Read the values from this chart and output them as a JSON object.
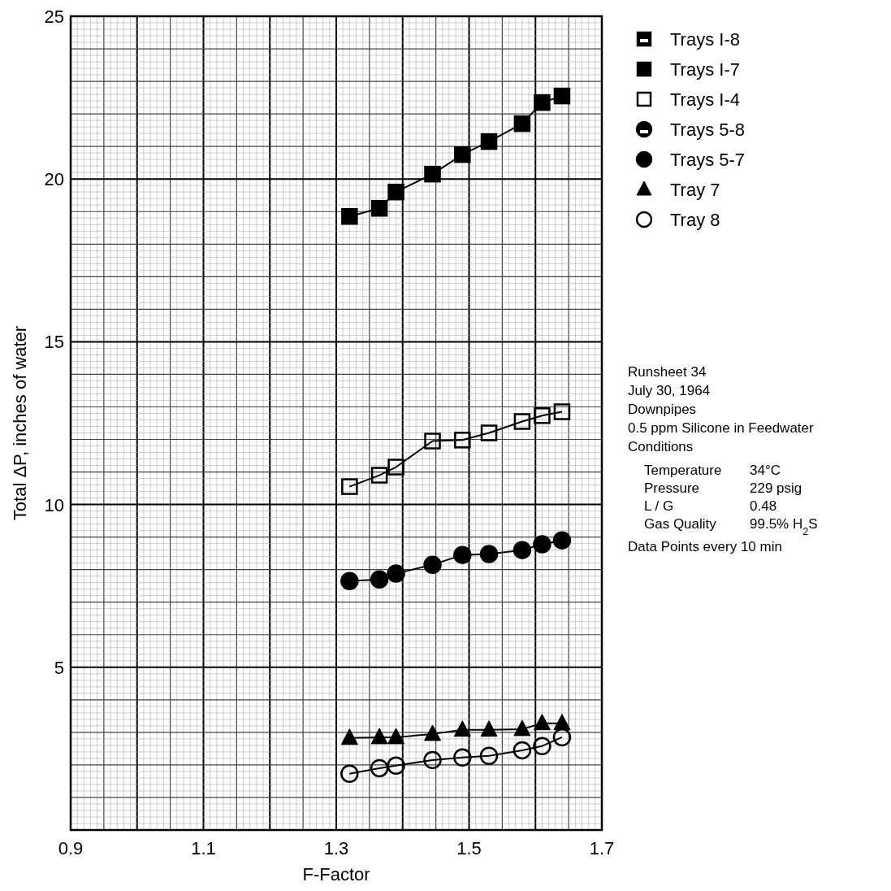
{
  "chart_data": {
    "type": "line",
    "xlabel": "F-Factor",
    "ylabel": "Total ΔP, inches of water",
    "x": [
      1.32,
      1.365,
      1.39,
      1.445,
      1.49,
      1.53,
      1.58,
      1.61,
      1.64
    ],
    "xlim": [
      0.9,
      1.7
    ],
    "xticks": [
      0.9,
      1.1,
      1.3,
      1.5,
      1.7
    ],
    "ylim": [
      0,
      25
    ],
    "yticks": [
      5,
      10,
      15,
      20,
      25
    ],
    "grid": true,
    "legend": "top right",
    "line_style": "solid",
    "series": [
      {
        "name": "Trays I-8",
        "color": "#000000",
        "marker": "square-half",
        "values": [
          null,
          null,
          null,
          null,
          null,
          null,
          null,
          null,
          null
        ]
      },
      {
        "name": "Trays I-7",
        "color": "#000000",
        "marker": "square",
        "values": [
          18.85,
          19.1,
          19.6,
          20.15,
          20.75,
          21.15,
          21.7,
          22.35,
          22.55
        ]
      },
      {
        "name": "Trays I-4",
        "color": "#000000",
        "marker": "square-open",
        "values": [
          10.55,
          10.9,
          11.15,
          11.95,
          11.98,
          12.2,
          12.55,
          12.73,
          12.85
        ]
      },
      {
        "name": "Trays 5-8",
        "color": "#000000",
        "marker": "circle-half",
        "values": [
          null,
          null,
          null,
          null,
          null,
          null,
          null,
          null,
          null
        ]
      },
      {
        "name": "Trays 5-7",
        "color": "#000000",
        "marker": "circle",
        "values": [
          7.65,
          7.7,
          7.88,
          8.15,
          8.45,
          8.48,
          8.6,
          8.78,
          8.9
        ]
      },
      {
        "name": "Tray 7",
        "color": "#000000",
        "marker": "triangle",
        "values": [
          2.83,
          2.85,
          2.85,
          2.95,
          3.08,
          3.08,
          3.1,
          3.28,
          3.28
        ]
      },
      {
        "name": "Tray 8",
        "color": "#000000",
        "marker": "circle-open",
        "values": [
          1.73,
          1.9,
          1.98,
          2.15,
          2.23,
          2.28,
          2.45,
          2.58,
          2.85
        ]
      }
    ],
    "annotations": [
      "Runsheet 34",
      "July 30, 1964",
      "Downpipes",
      "0.5 ppm Silicone in Feedwater",
      "Conditions",
      "Temperature",
      "34°C",
      "Pressure",
      "229 psig",
      "L / G",
      "0.48",
      "Gas Quality",
      "99.5% H$_{2}$S",
      "Data Points every 10 min"
    ]
  }
}
